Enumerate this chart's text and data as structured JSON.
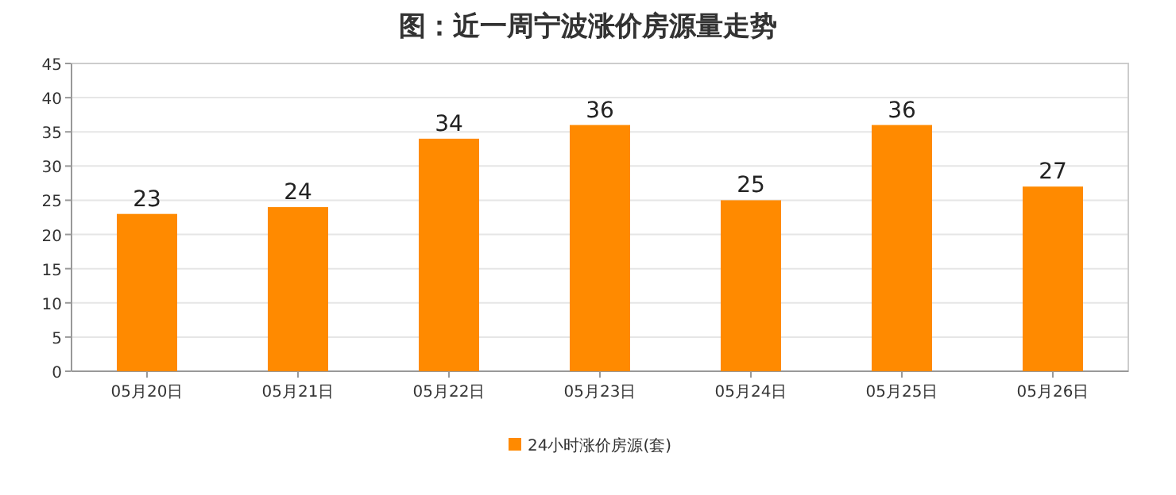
{
  "chart_data": {
    "type": "bar",
    "title": "图：近一周宁波涨价房源量走势",
    "categories": [
      "05月20日",
      "05月21日",
      "05月22日",
      "05月23日",
      "05月24日",
      "05月25日",
      "05月26日"
    ],
    "series": [
      {
        "name": "24小时涨价房源(套)",
        "color": "#ff8a00",
        "values": [
          23,
          24,
          34,
          36,
          25,
          36,
          27
        ]
      }
    ],
    "ylim": [
      0,
      45
    ],
    "yticks": [
      0,
      5,
      10,
      15,
      20,
      25,
      30,
      35,
      40,
      45
    ],
    "grid": "y",
    "legend": "bottom",
    "data_labels": true
  }
}
